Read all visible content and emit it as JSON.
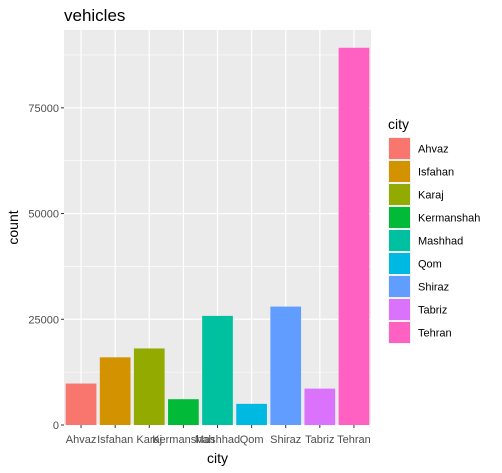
{
  "chart_data": {
    "type": "bar",
    "title": "vehicles",
    "xlabel": "city",
    "ylabel": "count",
    "categories": [
      "Ahvaz",
      "Isfahan",
      "Karaj",
      "Kermanshah",
      "Mashhad",
      "Qom",
      "Shiraz",
      "Tabriz",
      "Tehran"
    ],
    "values": [
      9800,
      16000,
      18100,
      6100,
      25800,
      5000,
      28000,
      8600,
      89200
    ],
    "colors": [
      "#F8766D",
      "#D39200",
      "#93AA00",
      "#00BA38",
      "#00C19F",
      "#00B9E3",
      "#619CFF",
      "#DB72FB",
      "#FF61C3"
    ],
    "ylim": [
      0,
      93400
    ],
    "yticks": [
      0,
      25000,
      50000,
      75000
    ],
    "ytick_labels": [
      "0",
      "25000",
      "50000",
      "75000"
    ],
    "grid": true,
    "legend": {
      "title": "city",
      "placement": "right",
      "entries": [
        "Ahvaz",
        "Isfahan",
        "Karaj",
        "Kermanshah",
        "Mashhad",
        "Qom",
        "Shiraz",
        "Tabriz",
        "Tehran"
      ]
    },
    "panel_color": "#EBEBEB",
    "grid_color": "#FFFFFF"
  }
}
